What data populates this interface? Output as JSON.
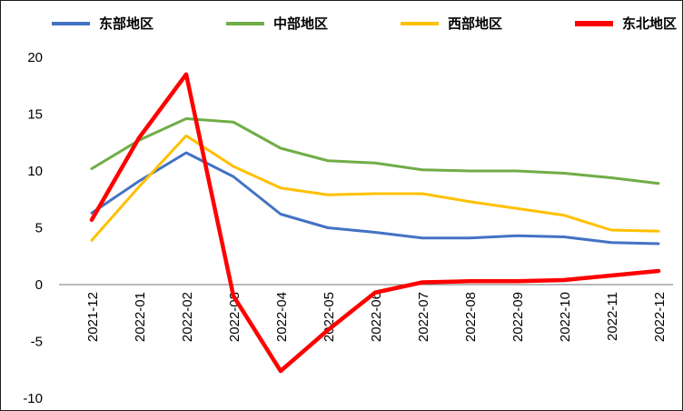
{
  "chart_data": {
    "type": "line",
    "title": "",
    "xlabel": "",
    "ylabel": "",
    "categories": [
      "2021-12",
      "2022-01",
      "2022-02",
      "2022-03",
      "2022-04",
      "2022-05",
      "2022-06",
      "2022-07",
      "2022-08",
      "2022-09",
      "2022-10",
      "2022-11",
      "2022-12"
    ],
    "series": [
      {
        "name": "东部地区",
        "color": "#4472C4",
        "stroke_width": 3,
        "values": [
          6.3,
          9.1,
          11.6,
          9.5,
          6.2,
          5.0,
          4.6,
          4.1,
          4.1,
          4.3,
          4.2,
          3.7,
          3.6
        ]
      },
      {
        "name": "中部地区",
        "color": "#70AD47",
        "stroke_width": 3,
        "values": [
          10.2,
          12.7,
          14.6,
          14.3,
          12.0,
          10.9,
          10.7,
          10.1,
          10.0,
          10.0,
          9.8,
          9.4,
          8.9
        ]
      },
      {
        "name": "西部地区",
        "color": "#FFC000",
        "stroke_width": 3,
        "values": [
          3.9,
          8.6,
          13.1,
          10.4,
          8.5,
          7.9,
          8.0,
          8.0,
          7.3,
          6.7,
          6.1,
          4.8,
          4.7
        ]
      },
      {
        "name": "东北地区",
        "color": "#FF0000",
        "stroke_width": 4.5,
        "values": [
          5.7,
          12.9,
          18.5,
          -1.0,
          -7.6,
          -4.0,
          -0.7,
          0.2,
          0.3,
          0.3,
          0.4,
          0.8,
          1.2
        ]
      }
    ],
    "ylim": [
      -10,
      20
    ],
    "yticks": [
      20,
      15,
      10,
      5,
      0,
      -5,
      -10
    ],
    "ytick_labels": [
      "20",
      "15",
      "10",
      "5",
      "0",
      "-5",
      "-10"
    ],
    "legend_position": "top",
    "grid": false,
    "axis_line_color": "#737373"
  }
}
